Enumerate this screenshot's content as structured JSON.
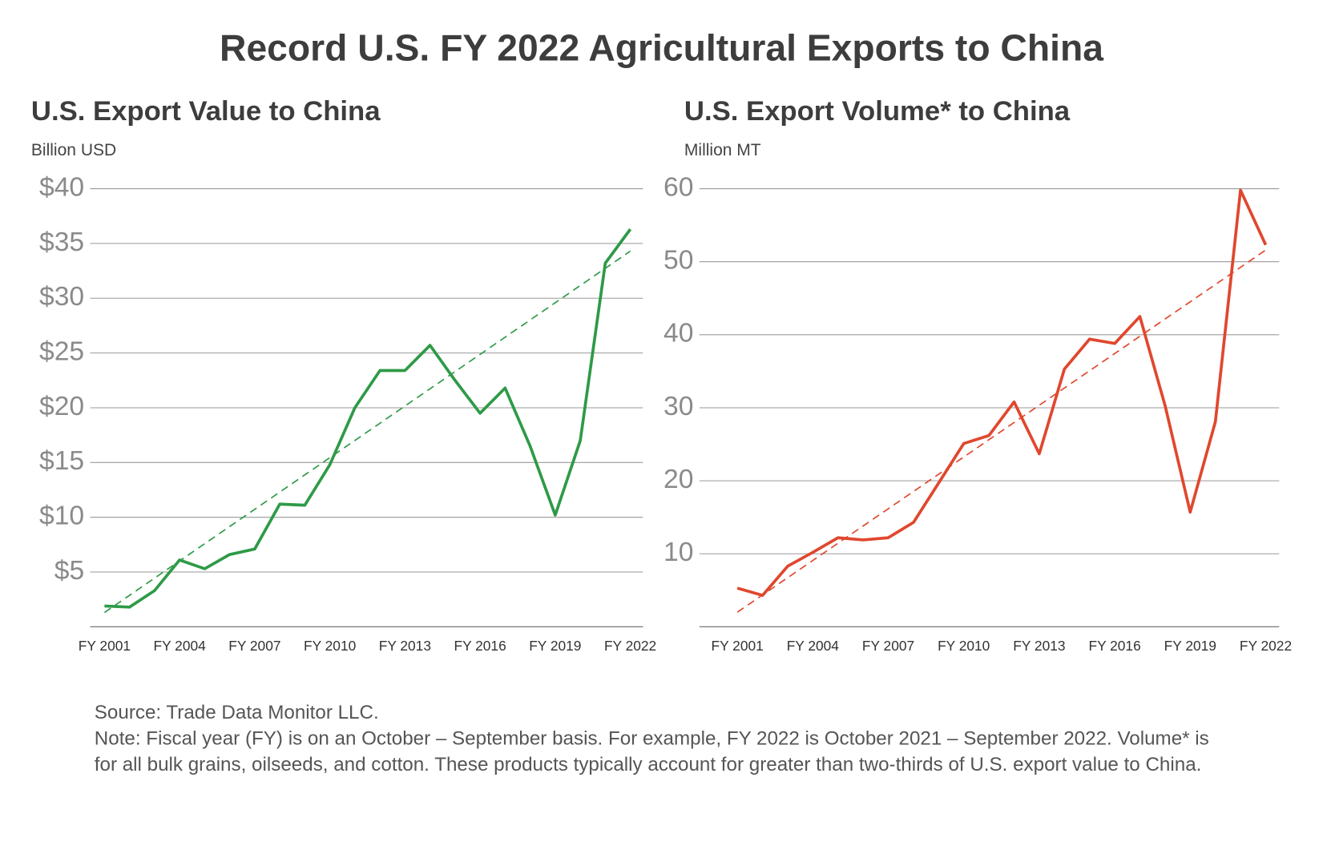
{
  "title": "Record U.S. FY 2022 Agricultural Exports to China",
  "chart_data": [
    {
      "type": "line",
      "title": "U.S. Export Value to China",
      "subtitle": "Billion USD",
      "categories": [
        "FY 2001",
        null,
        null,
        "FY 2004",
        null,
        null,
        "FY 2007",
        null,
        null,
        "FY 2010",
        null,
        null,
        "FY 2013",
        null,
        null,
        "FY 2016",
        null,
        null,
        "FY 2019",
        null,
        null,
        "FY 2022"
      ],
      "values": [
        1.9,
        1.8,
        3.3,
        6.1,
        5.3,
        6.6,
        7.1,
        11.2,
        11.1,
        14.8,
        20.0,
        23.4,
        23.4,
        25.7,
        22.5,
        19.5,
        21.8,
        16.5,
        10.2,
        17.0,
        33.2,
        36.3
      ],
      "color": "#2e9a47",
      "trend": [
        1.3,
        34.3
      ],
      "ylim": [
        0,
        40
      ],
      "yticks": [
        {
          "value": 5,
          "label": "$5"
        },
        {
          "value": 10,
          "label": "$10"
        },
        {
          "value": 15,
          "label": "$15"
        },
        {
          "value": 20,
          "label": "$20"
        },
        {
          "value": 25,
          "label": "$25"
        },
        {
          "value": 30,
          "label": "$30"
        },
        {
          "value": 35,
          "label": "$35"
        },
        {
          "value": 40,
          "label": "$40"
        }
      ],
      "grid": true
    },
    {
      "type": "line",
      "title": "U.S. Export Volume* to China",
      "subtitle": "Million MT",
      "categories": [
        "FY 2001",
        null,
        null,
        "FY 2004",
        null,
        null,
        "FY 2007",
        null,
        null,
        "FY 2010",
        null,
        null,
        "FY 2013",
        null,
        null,
        "FY 2016",
        null,
        null,
        "FY 2019",
        null,
        null,
        "FY 2022"
      ],
      "values": [
        5.3,
        4.3,
        8.3,
        10.2,
        12.2,
        11.9,
        12.2,
        14.3,
        19.7,
        25.1,
        26.2,
        30.8,
        23.7,
        35.3,
        39.4,
        38.8,
        42.5,
        30.3,
        15.7,
        28.1,
        59.8,
        52.3
      ],
      "color": "#e0472e",
      "trend": [
        2.0,
        51.6
      ],
      "ylim": [
        0,
        60
      ],
      "yticks": [
        10,
        20,
        30,
        40,
        50,
        60
      ],
      "grid": true
    }
  ],
  "footnote": {
    "source": "Source: Trade Data Monitor LLC.",
    "note": "Note: Fiscal year (FY) is on an October – September basis. For example, FY 2022 is October 2021 – September 2022. Volume* is for all bulk grains, oilseeds, and cotton. These products typically account for greater than two-thirds of U.S. export value to China."
  }
}
